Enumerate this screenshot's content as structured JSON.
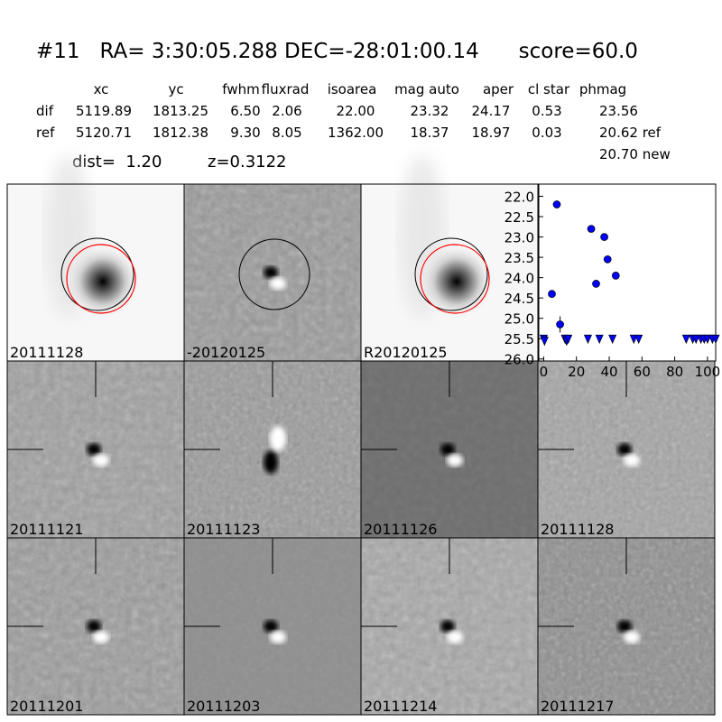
{
  "header": {
    "title": "#11   RA= 3:30:05.288 DEC=-28:01:00.14      score=60.0"
  },
  "table": {
    "columns": [
      "xc",
      "yc",
      "fwhm",
      "fluxrad",
      "isoarea",
      "mag auto",
      "aper",
      "cl star",
      "phmag"
    ],
    "rows": [
      {
        "label": "dif",
        "cells": [
          "5119.89",
          "1813.25",
          "6.50",
          "2.06",
          "22.00",
          "23.32",
          "24.17",
          "0.53",
          "23.56"
        ]
      },
      {
        "label": "ref",
        "cells": [
          "5120.71",
          "1812.38",
          "9.30",
          "8.05",
          "1362.00",
          "18.37",
          "18.97",
          "0.03",
          "20.62 ref"
        ]
      }
    ],
    "extra": "20.70 new"
  },
  "summary": {
    "dist": "dist=  1.20",
    "z": "z=0.3122"
  },
  "panels": [
    {
      "label": "20111128"
    },
    {
      "label": "-20120125"
    },
    {
      "label": "R20120125"
    },
    {
      "label": "20111121"
    },
    {
      "label": "20111123"
    },
    {
      "label": "20111126"
    },
    {
      "label": "20111128",
      "label_color": "#ff0000"
    },
    {
      "label": "20111201"
    },
    {
      "label": "20111203"
    },
    {
      "label": "20111214"
    },
    {
      "label": "20111217"
    }
  ],
  "chart_data": {
    "type": "scatter",
    "xlim": [
      -3,
      105
    ],
    "ylim": [
      26.05,
      21.7
    ],
    "xticks": [
      0,
      20,
      40,
      60,
      80,
      100
    ],
    "yticks": [
      {
        "value": 22,
        "label": "22.0"
      },
      {
        "value": 22.5,
        "label": "22.5"
      },
      {
        "value": 23,
        "label": "23.0"
      },
      {
        "value": 23.5,
        "label": "23.5"
      },
      {
        "value": 24,
        "label": "24.0"
      },
      {
        "value": 24.5,
        "label": "24.5"
      },
      {
        "value": 25,
        "label": "25.0"
      },
      {
        "value": 25.5,
        "label": "25.5"
      },
      {
        "value": 26,
        "label": "26.0"
      }
    ],
    "series": [
      {
        "color": "#0000ff",
        "marker": "circle",
        "x": [
          5,
          8,
          10,
          29,
          32,
          37,
          39,
          44
        ],
        "values": [
          24.4,
          22.2,
          25.15,
          22.8,
          24.15,
          23.0,
          23.55,
          23.95
        ],
        "errors": [
          null,
          null,
          0.2,
          null,
          null,
          null,
          null,
          null
        ]
      },
      {
        "color": "#0000ff",
        "marker": "triangle-down",
        "x": [
          0,
          0.5,
          13,
          14,
          15,
          27,
          34,
          42,
          55,
          58,
          87,
          91,
          93,
          96,
          98,
          100,
          103,
          105
        ],
        "values": [
          25.5,
          25.55,
          25.5,
          25.55,
          25.5,
          25.5,
          25.5,
          25.5,
          25.5,
          25.5,
          25.5,
          25.5,
          25.5,
          25.5,
          25.5,
          25.5,
          25.5,
          25.5
        ]
      }
    ]
  }
}
